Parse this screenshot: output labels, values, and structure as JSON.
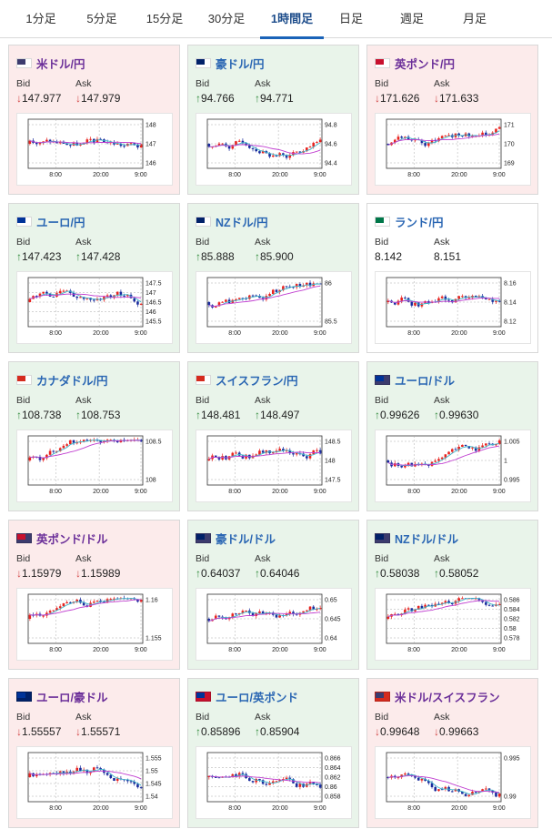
{
  "tabs": [
    {
      "label": "1分足",
      "active": false
    },
    {
      "label": "5分足",
      "active": false
    },
    {
      "label": "15分足",
      "active": false
    },
    {
      "label": "30分足",
      "active": false
    },
    {
      "label": "1時間足",
      "active": true
    },
    {
      "label": "日足",
      "active": false
    },
    {
      "label": "週足",
      "active": false
    },
    {
      "label": "月足",
      "active": false
    }
  ],
  "labels": {
    "bid": "Bid",
    "ask": "Ask"
  },
  "colors": {
    "pink_bg": "#fcebeb",
    "green_bg": "#e9f4ea",
    "up_candle": "#e8231f",
    "down_candle": "#1a2c9e",
    "ma_short": "#3fb6c8",
    "ma_long": "#c03ed0",
    "down_arrow": "#d24545",
    "up_arrow": "#2f8a3a"
  },
  "x_tick_labels": [
    "8:00",
    "20:00",
    "9:00"
  ],
  "cards": [
    {
      "pair": "米ドル/円",
      "bg": "pink",
      "flags": [
        "#3c3b6e",
        "#ffffff"
      ],
      "dir": "down",
      "dir_symbol": "↓",
      "bid": "147.977",
      "ask": "147.979",
      "y_labels": [
        "148",
        "147",
        "146"
      ],
      "seed": 3
    },
    {
      "pair": "豪ドル/円",
      "bg": "green",
      "flags": [
        "#012169",
        "#ffffff"
      ],
      "dir": "up",
      "dir_symbol": "↑",
      "bid": "94.766",
      "ask": "94.771",
      "y_labels": [
        "94.8",
        "94.6",
        "94.4"
      ],
      "seed": 7
    },
    {
      "pair": "英ポンド/円",
      "bg": "pink",
      "flags": [
        "#c8102e",
        "#ffffff"
      ],
      "dir": "down",
      "dir_symbol": "↓",
      "bid": "171.626",
      "ask": "171.633",
      "y_labels": [
        "171",
        "170",
        "169"
      ],
      "seed": 11
    },
    {
      "pair": "ユーロ/円",
      "bg": "green",
      "flags": [
        "#003399",
        "#ffffff"
      ],
      "dir": "up",
      "dir_symbol": "↑",
      "bid": "147.423",
      "ask": "147.428",
      "y_labels": [
        "147.5",
        "147",
        "146.5",
        "146",
        "145.5"
      ],
      "seed": 13
    },
    {
      "pair": "NZドル/円",
      "bg": "green",
      "flags": [
        "#012169",
        "#ffffff"
      ],
      "dir": "up",
      "dir_symbol": "↑",
      "bid": "85.888",
      "ask": "85.900",
      "y_labels": [
        "86",
        "85.5"
      ],
      "seed": 17
    },
    {
      "pair": "ランド/円",
      "bg": "white",
      "flags": [
        "#007749",
        "#ffffff"
      ],
      "dir": "none",
      "dir_symbol": "",
      "bid": "8.142",
      "ask": "8.151",
      "y_labels": [
        "8.16",
        "8.14",
        "8.12"
      ],
      "seed": 19
    },
    {
      "pair": "カナダドル/円",
      "bg": "green",
      "flags": [
        "#d52b1e",
        "#ffffff"
      ],
      "dir": "up",
      "dir_symbol": "↑",
      "bid": "108.738",
      "ask": "108.753",
      "y_labels": [
        "108.5",
        "108"
      ],
      "seed": 23
    },
    {
      "pair": "スイスフラン/円",
      "bg": "green",
      "flags": [
        "#d52b1e",
        "#ffffff"
      ],
      "dir": "up",
      "dir_symbol": "↑",
      "bid": "148.481",
      "ask": "148.497",
      "y_labels": [
        "148.5",
        "148",
        "147.5"
      ],
      "seed": 29
    },
    {
      "pair": "ユーロ/ドル",
      "bg": "green",
      "flags": [
        "#003399",
        "#3c3b6e"
      ],
      "dir": "up",
      "dir_symbol": "↑",
      "bid": "0.99626",
      "ask": "0.99630",
      "y_labels": [
        "1.005",
        "1",
        "0.995"
      ],
      "seed": 31
    },
    {
      "pair": "英ポンド/ドル",
      "bg": "pink",
      "flags": [
        "#c8102e",
        "#3c3b6e"
      ],
      "dir": "down",
      "dir_symbol": "↓",
      "bid": "1.15979",
      "ask": "1.15989",
      "y_labels": [
        "1.16",
        "1.155"
      ],
      "seed": 37
    },
    {
      "pair": "豪ドル/ドル",
      "bg": "green",
      "flags": [
        "#012169",
        "#3c3b6e"
      ],
      "dir": "up",
      "dir_symbol": "↑",
      "bid": "0.64037",
      "ask": "0.64046",
      "y_labels": [
        "0.65",
        "0.645",
        "0.64"
      ],
      "seed": 41
    },
    {
      "pair": "NZドル/ドル",
      "bg": "green",
      "flags": [
        "#012169",
        "#3c3b6e"
      ],
      "dir": "up",
      "dir_symbol": "↑",
      "bid": "0.58038",
      "ask": "0.58052",
      "y_labels": [
        "0.586",
        "0.584",
        "0.582",
        "0.58",
        "0.578"
      ],
      "seed": 43
    },
    {
      "pair": "ユーロ/豪ドル",
      "bg": "pink",
      "flags": [
        "#003399",
        "#012169"
      ],
      "dir": "down",
      "dir_symbol": "↓",
      "bid": "1.55557",
      "ask": "1.55571",
      "y_labels": [
        "1.555",
        "1.55",
        "1.545",
        "1.54"
      ],
      "seed": 47
    },
    {
      "pair": "ユーロ/英ポンド",
      "bg": "green",
      "flags": [
        "#003399",
        "#c8102e"
      ],
      "dir": "up",
      "dir_symbol": "↑",
      "bid": "0.85896",
      "ask": "0.85904",
      "y_labels": [
        "0.866",
        "0.864",
        "0.862",
        "0.86",
        "0.858"
      ],
      "seed": 53
    },
    {
      "pair": "米ドル/スイスフラン",
      "bg": "pink",
      "flags": [
        "#3c3b6e",
        "#d52b1e"
      ],
      "dir": "down",
      "dir_symbol": "↓",
      "bid": "0.99648",
      "ask": "0.99663",
      "y_labels": [
        "0.995",
        "0.99"
      ],
      "seed": 59
    }
  ]
}
